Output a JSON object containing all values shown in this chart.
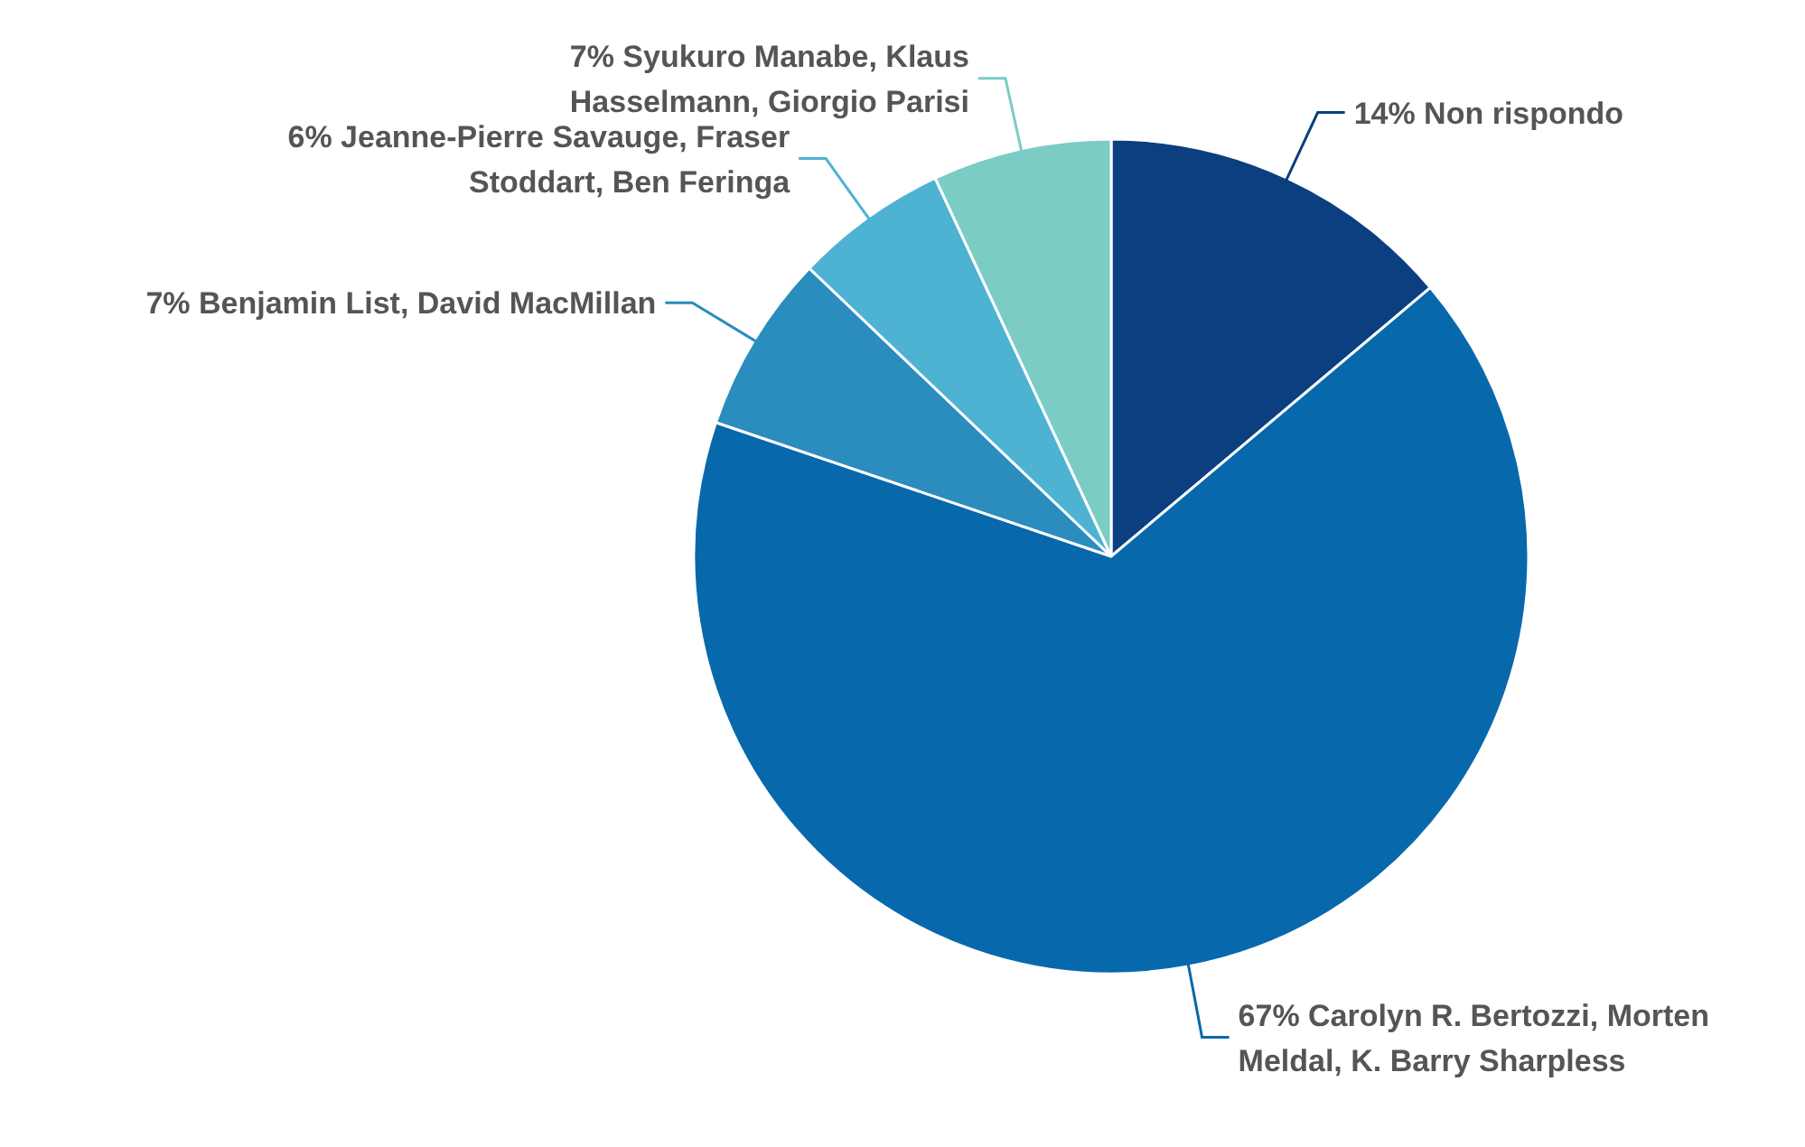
{
  "chart_data": {
    "type": "pie",
    "categories": [
      "Non rispondo",
      "Carolyn R. Bertozzi, Morten Meldal, K. Barry Sharpless",
      "Benjamin List, David MacMillan",
      "Jeanne-Pierre Savauge, Fraser Stoddart, Ben Feringa",
      "Syukuro Manabe, Klaus Hasselmann, Giorgio Parisi"
    ],
    "values": [
      14,
      67,
      7,
      6,
      7
    ],
    "value_labels": [
      "14%",
      "67%",
      "7%",
      "6%",
      "7%"
    ],
    "colors": [
      "#0b3f7f",
      "#0868ac",
      "#2b8cbe",
      "#4eb3d3",
      "#7bccc4"
    ]
  }
}
